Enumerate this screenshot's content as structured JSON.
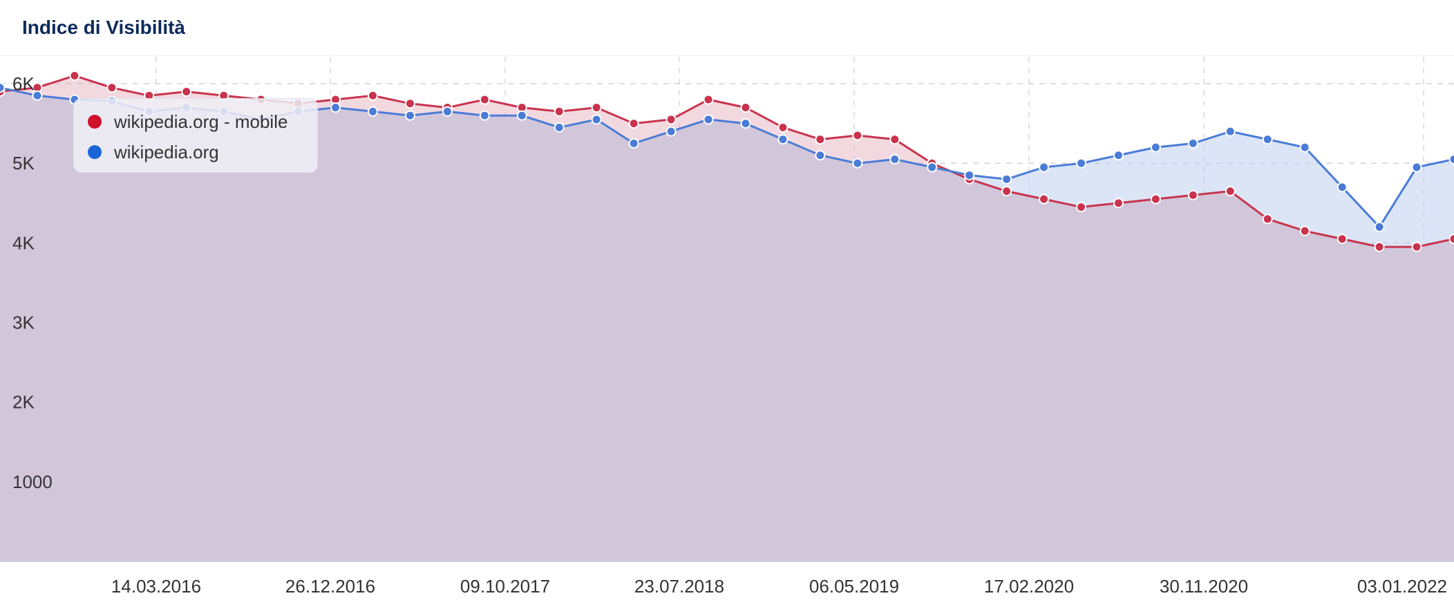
{
  "header": {
    "title": "Indice di Visibilità"
  },
  "chart_data": {
    "type": "area",
    "title": "Indice di Visibilità",
    "x_ticks": [
      "14.03.2016",
      "26.12.2016",
      "09.10.2017",
      "23.07.2018",
      "06.05.2019",
      "17.02.2020",
      "30.11.2020",
      "03.01.2022"
    ],
    "y_ticks": [
      {
        "value": 1000,
        "label": "1000"
      },
      {
        "value": 2000,
        "label": "2K"
      },
      {
        "value": 3000,
        "label": "3K"
      },
      {
        "value": 4000,
        "label": "4K"
      },
      {
        "value": 5000,
        "label": "5K"
      },
      {
        "value": 6000,
        "label": "6K"
      }
    ],
    "ylim": [
      0,
      6000
    ],
    "grid": true,
    "legend_position": "top-left",
    "x": [
      "2015-09",
      "2015-11",
      "2016-01",
      "2016-03",
      "2016-05",
      "2016-07",
      "2016-09",
      "2016-11",
      "2017-01",
      "2017-03",
      "2017-05",
      "2017-07",
      "2017-09",
      "2017-11",
      "2018-01",
      "2018-03",
      "2018-05",
      "2018-07",
      "2018-09",
      "2018-11",
      "2019-01",
      "2019-03",
      "2019-05",
      "2019-07",
      "2019-09",
      "2019-11",
      "2020-01",
      "2020-03",
      "2020-05",
      "2020-07",
      "2020-09",
      "2020-11",
      "2021-01",
      "2021-03",
      "2021-05",
      "2021-07",
      "2021-09",
      "2021-11",
      "2022-01",
      "2022-03"
    ],
    "series": [
      {
        "name": "wikipedia.org - mobile",
        "color": "#c9334d",
        "values": [
          5900,
          5950,
          6100,
          5950,
          5850,
          5900,
          5850,
          5800,
          5750,
          5800,
          5850,
          5750,
          5700,
          5800,
          5700,
          5650,
          5700,
          5500,
          5550,
          5800,
          5700,
          5450,
          5300,
          5350,
          5300,
          5000,
          4800,
          4650,
          4550,
          4450,
          4500,
          4550,
          4600,
          4650,
          4300,
          4150,
          4050,
          3950,
          3950,
          4050
        ]
      },
      {
        "name": "wikipedia.org",
        "color": "#4a7cd6",
        "values": [
          5950,
          5850,
          5800,
          5780,
          5650,
          5700,
          5650,
          5550,
          5650,
          5700,
          5650,
          5600,
          5650,
          5600,
          5600,
          5450,
          5550,
          5250,
          5400,
          5550,
          5500,
          5300,
          5100,
          5000,
          5050,
          4950,
          4850,
          4800,
          4950,
          5000,
          5100,
          5200,
          5250,
          5400,
          5300,
          5200,
          4700,
          4200,
          4950,
          5050
        ]
      }
    ]
  }
}
